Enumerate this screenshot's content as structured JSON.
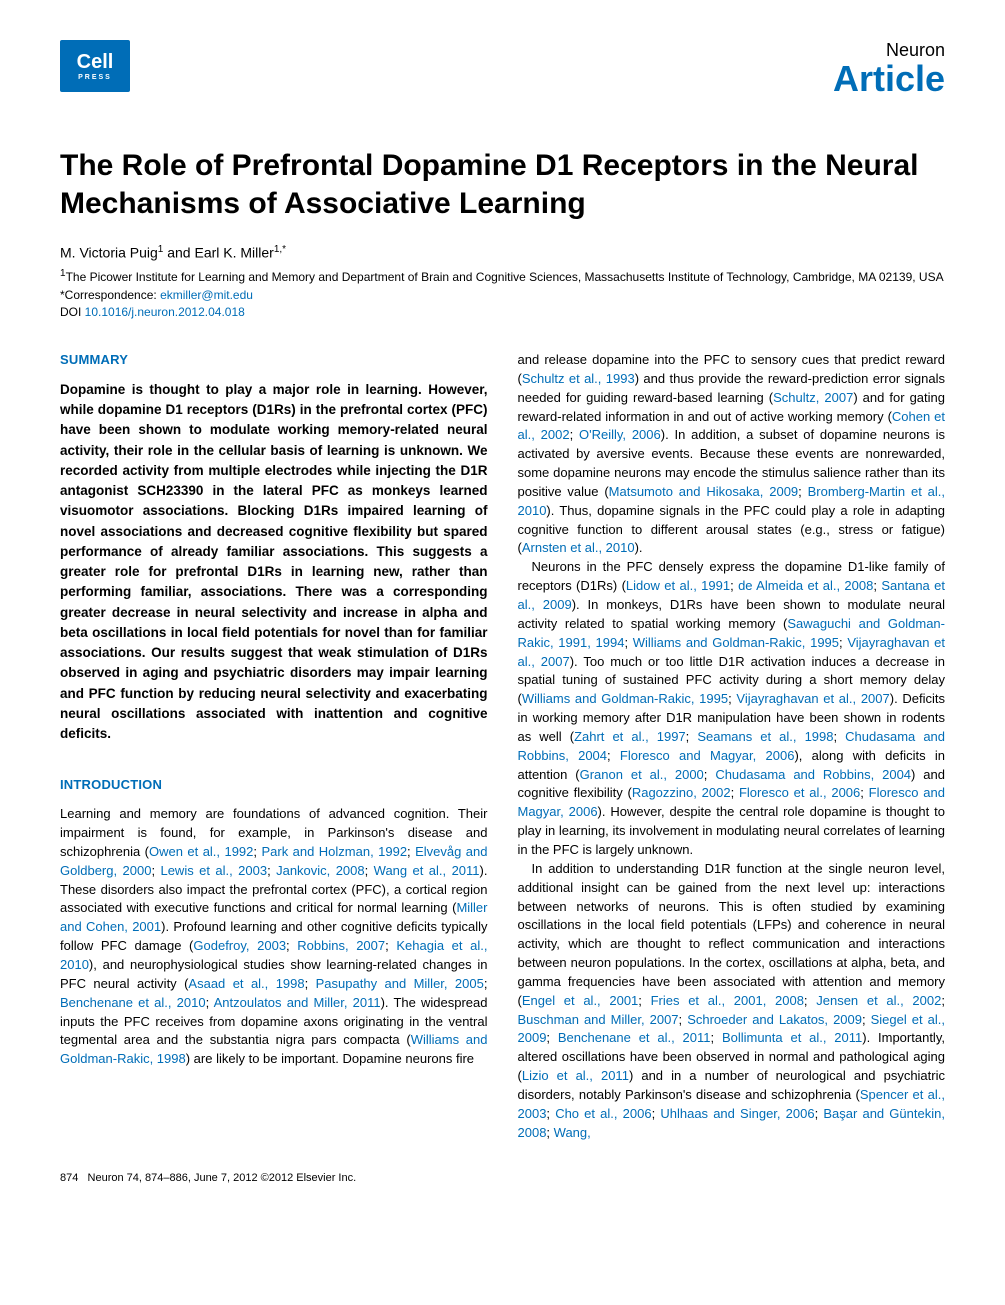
{
  "header": {
    "logo_main": "Cell",
    "logo_sub": "PRESS",
    "journal": "Neuron",
    "article_type": "Article"
  },
  "title": "The Role of Prefrontal Dopamine D1 Receptors in the Neural Mechanisms of Associative Learning",
  "authors": {
    "line": "M. Victoria Puig",
    "sup1": "1",
    "and": " and Earl K. Miller",
    "sup2": "1,",
    "star": "*"
  },
  "affiliation": {
    "sup": "1",
    "text": "The Picower Institute for Learning and Memory and Department of Brain and Cognitive Sciences, Massachusetts Institute of Technology, Cambridge, MA 02139, USA"
  },
  "correspondence": {
    "label": "*Correspondence: ",
    "email": "ekmiller@mit.edu"
  },
  "doi": {
    "label": "DOI ",
    "value": "10.1016/j.neuron.2012.04.018"
  },
  "sections": {
    "summary_heading": "SUMMARY",
    "summary": "Dopamine is thought to play a major role in learning. However, while dopamine D1 receptors (D1Rs) in the prefrontal cortex (PFC) have been shown to modulate working memory-related neural activity, their role in the cellular basis of learning is unknown. We recorded activity from multiple electrodes while injecting the D1R antagonist SCH23390 in the lateral PFC as monkeys learned visuomotor associations. Blocking D1Rs impaired learning of novel associations and decreased cognitive flexibility but spared performance of already familiar associations. This suggests a greater role for prefrontal D1Rs in learning new, rather than performing familiar, associations. There was a corresponding greater decrease in neural selectivity and increase in alpha and beta oscillations in local field potentials for novel than for familiar associations. Our results suggest that weak stimulation of D1Rs observed in aging and psychiatric disorders may impair learning and PFC function by reducing neural selectivity and exacerbating neural oscillations associated with inattention and cognitive deficits.",
    "intro_heading": "INTRODUCTION",
    "intro_p1_a": "Learning and memory are foundations of advanced cognition. Their impairment is found, for example, in Parkinson's disease and schizophrenia (",
    "intro_p1_ref1": "Owen et al., 1992",
    "intro_p1_b": "; ",
    "intro_p1_ref2": "Park and Holzman, 1992",
    "intro_p1_c": "; ",
    "intro_p1_ref3": "Elvevåg and Goldberg, 2000",
    "intro_p1_d": "; ",
    "intro_p1_ref4": "Lewis et al., 2003",
    "intro_p1_e": "; ",
    "intro_p1_ref5": "Jankovic, 2008",
    "intro_p1_f": "; ",
    "intro_p1_ref6": "Wang et al., 2011",
    "intro_p1_g": "). These disorders also impact the prefrontal cortex (PFC), a cortical region associated with executive functions and critical for normal learning (",
    "intro_p1_ref7": "Miller and Cohen, 2001",
    "intro_p1_h": "). Profound learning and other cognitive deficits typically follow PFC damage (",
    "intro_p1_ref8": "Godefroy, 2003",
    "intro_p1_i": "; ",
    "intro_p1_ref9": "Robbins, 2007",
    "intro_p1_j": "; ",
    "intro_p1_ref10": "Kehagia et al., 2010",
    "intro_p1_k": "), and neurophysiological studies show learning-related changes in PFC neural activity (",
    "intro_p1_ref11": "Asaad et al., 1998",
    "intro_p1_l": "; ",
    "intro_p1_ref12": "Pasupathy and Miller, 2005",
    "intro_p1_m": "; ",
    "intro_p1_ref13": "Benchenane et al., 2010",
    "intro_p1_n": "; ",
    "intro_p1_ref14": "Antzoulatos and Miller, 2011",
    "intro_p1_o": "). The widespread inputs the PFC receives from dopamine axons originating in the ventral tegmental area and the substantia nigra pars compacta (",
    "intro_p1_ref15": "Williams and Goldman-Rakic, 1998",
    "intro_p1_p": ") are likely to be important. Dopamine neurons fire",
    "col2_p1_a": "and release dopamine into the PFC to sensory cues that predict reward (",
    "col2_p1_ref1": "Schultz et al., 1993",
    "col2_p1_b": ") and thus provide the reward-prediction error signals needed for guiding reward-based learning (",
    "col2_p1_ref2": "Schultz, 2007",
    "col2_p1_c": ") and for gating reward-related information in and out of active working memory (",
    "col2_p1_ref3": "Cohen et al., 2002",
    "col2_p1_d": "; ",
    "col2_p1_ref4": "O'Reilly, 2006",
    "col2_p1_e": "). In addition, a subset of dopamine neurons is activated by aversive events. Because these events are nonrewarded, some dopamine neurons may encode the stimulus salience rather than its positive value (",
    "col2_p1_ref5": "Matsumoto and Hikosaka, 2009",
    "col2_p1_f": "; ",
    "col2_p1_ref6": "Bromberg-Martin et al., 2010",
    "col2_p1_g": "). Thus, dopamine signals in the PFC could play a role in adapting cognitive function to different arousal states (e.g., stress or fatigue) (",
    "col2_p1_ref7": "Arnsten et al., 2010",
    "col2_p1_h": ").",
    "col2_p2_a": "Neurons in the PFC densely express the dopamine D1-like family of receptors (D1Rs) (",
    "col2_p2_ref1": "Lidow et al., 1991",
    "col2_p2_b": "; ",
    "col2_p2_ref2": "de Almeida et al., 2008",
    "col2_p2_c": "; ",
    "col2_p2_ref3": "Santana et al., 2009",
    "col2_p2_d": "). In monkeys, D1Rs have been shown to modulate neural activity related to spatial working memory (",
    "col2_p2_ref4": "Sawaguchi and Goldman-Rakic, 1991, 1994",
    "col2_p2_e": "; ",
    "col2_p2_ref5": "Williams and Goldman-Rakic, 1995",
    "col2_p2_f": "; ",
    "col2_p2_ref6": "Vijayraghavan et al., 2007",
    "col2_p2_g": "). Too much or too little D1R activation induces a decrease in spatial tuning of sustained PFC activity during a short memory delay (",
    "col2_p2_ref7": "Williams and Goldman-Rakic, 1995",
    "col2_p2_h": "; ",
    "col2_p2_ref8": "Vijayraghavan et al., 2007",
    "col2_p2_i": "). Deficits in working memory after D1R manipulation have been shown in rodents as well (",
    "col2_p2_ref9": "Zahrt et al., 1997",
    "col2_p2_j": "; ",
    "col2_p2_ref10": "Seamans et al., 1998",
    "col2_p2_k": "; ",
    "col2_p2_ref11": "Chudasama and Robbins, 2004",
    "col2_p2_l": "; ",
    "col2_p2_ref12": "Floresco and Magyar, 2006",
    "col2_p2_m": "), along with deficits in attention (",
    "col2_p2_ref13": "Granon et al., 2000",
    "col2_p2_n": "; ",
    "col2_p2_ref14": "Chudasama and Robbins, 2004",
    "col2_p2_o": ") and cognitive flexibility (",
    "col2_p2_ref15": "Ragozzino, 2002",
    "col2_p2_p": "; ",
    "col2_p2_ref16": "Floresco et al., 2006",
    "col2_p2_q": "; ",
    "col2_p2_ref17": "Floresco and Magyar, 2006",
    "col2_p2_r": "). However, despite the central role dopamine is thought to play in learning, its involvement in modulating neural correlates of learning in the PFC is largely unknown.",
    "col2_p3_a": "In addition to understanding D1R function at the single neuron level, additional insight can be gained from the next level up: interactions between networks of neurons. This is often studied by examining oscillations in the local field potentials (LFPs) and coherence in neural activity, which are thought to reflect communication and interactions between neuron populations. In the cortex, oscillations at alpha, beta, and gamma frequencies have been associated with attention and memory (",
    "col2_p3_ref1": "Engel et al., 2001",
    "col2_p3_b": "; ",
    "col2_p3_ref2": "Fries et al., 2001, 2008",
    "col2_p3_c": "; ",
    "col2_p3_ref3": "Jensen et al., 2002",
    "col2_p3_d": "; ",
    "col2_p3_ref4": "Buschman and Miller, 2007",
    "col2_p3_e": "; ",
    "col2_p3_ref5": "Schroeder and Lakatos, 2009",
    "col2_p3_f": "; ",
    "col2_p3_ref6": "Siegel et al., 2009",
    "col2_p3_g": "; ",
    "col2_p3_ref7": "Benchenane et al., 2011",
    "col2_p3_h": "; ",
    "col2_p3_ref8": "Bollimunta et al., 2011",
    "col2_p3_i": "). Importantly, altered oscillations have been observed in normal and pathological aging (",
    "col2_p3_ref9": "Lizio et al., 2011",
    "col2_p3_j": ") and in a number of neurological and psychiatric disorders, notably Parkinson's disease and schizophrenia (",
    "col2_p3_ref10": "Spencer et al., 2003",
    "col2_p3_k": "; ",
    "col2_p3_ref11": "Cho et al., 2006",
    "col2_p3_l": "; ",
    "col2_p3_ref12": "Uhlhaas and Singer, 2006",
    "col2_p3_m": "; ",
    "col2_p3_ref13": "Başar and Güntekin, 2008",
    "col2_p3_n": "; ",
    "col2_p3_ref14": "Wang,"
  },
  "footer": {
    "page": "874",
    "citation": "Neuron 74, 874–886, June 7, 2012 ©2012 Elsevier Inc."
  },
  "colors": {
    "brand_blue": "#006db7",
    "text": "#000000",
    "background": "#ffffff"
  }
}
